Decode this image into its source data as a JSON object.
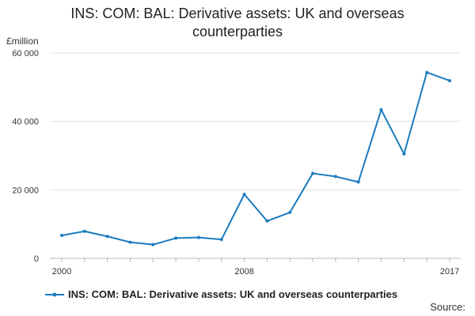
{
  "chart_data": {
    "type": "line",
    "title": "INS: COM: BAL: Derivative assets: UK and overseas counterparties",
    "ylabel": "£million",
    "xlabel": "",
    "x": [
      2000,
      2001,
      2002,
      2003,
      2004,
      2005,
      2006,
      2007,
      2008,
      2009,
      2010,
      2011,
      2012,
      2013,
      2014,
      2015,
      2016,
      2017
    ],
    "x_tick_labels": [
      "2000",
      "2008",
      "2017"
    ],
    "y_tick_labels": [
      "0",
      "20 000",
      "40 000",
      "60 000"
    ],
    "ylim": [
      0,
      60000
    ],
    "grid": true,
    "series": [
      {
        "name": "INS: COM: BAL: Derivative assets: UK and overseas counterparties",
        "color": "#1a7bbf",
        "values": [
          6700,
          7900,
          6400,
          4700,
          4000,
          5900,
          6100,
          5500,
          18700,
          10900,
          13400,
          24800,
          23900,
          22300,
          43400,
          30500,
          54300,
          51900
        ]
      }
    ],
    "legend_position": "bottom"
  },
  "source_label": "Source:"
}
